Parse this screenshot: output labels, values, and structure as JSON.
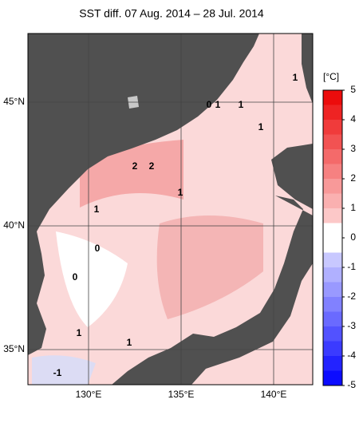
{
  "title": "SST diff. 07 Aug. 2014 – 28 Jul. 2014",
  "latitude_labels": [
    "45°N",
    "40°N",
    "35°N"
  ],
  "longitude_labels": [
    "130°E",
    "135°E",
    "140°E"
  ],
  "colorbar": {
    "unit": "[°C]",
    "ticks": [
      5,
      4,
      3,
      2,
      1,
      0,
      -1,
      -2,
      -3,
      -4,
      -5
    ]
  },
  "contour_labels": [
    1,
    0,
    1,
    1,
    1,
    2,
    2,
    1,
    1,
    0,
    0,
    1,
    1,
    -1
  ]
}
